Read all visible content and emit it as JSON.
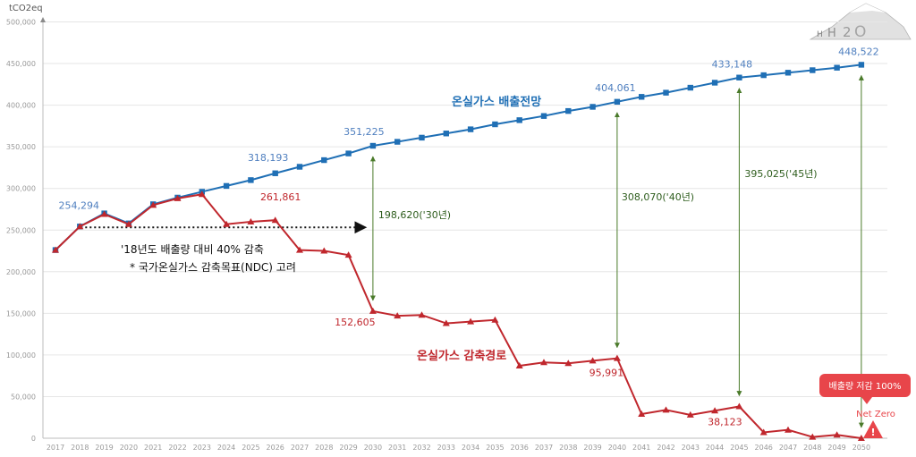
{
  "chart_data": {
    "type": "line",
    "ylabel": "tCO2eq",
    "ylim": [
      0,
      500000
    ],
    "yticks": [
      "0",
      "50,000",
      "100,000",
      "150,000",
      "200,000",
      "250,000",
      "300,000",
      "350,000",
      "400,000",
      "450,000",
      "500,000"
    ],
    "x": [
      "2017",
      "2018",
      "2019",
      "2020",
      "2021",
      "2022",
      "2023",
      "2024",
      "2025",
      "2026",
      "2027",
      "2028",
      "2029",
      "2030",
      "2031",
      "2032",
      "2033",
      "2034",
      "2035",
      "2036",
      "2037",
      "2038",
      "2039",
      "2040",
      "2041",
      "2042",
      "2043",
      "2044",
      "2045",
      "2046",
      "2047",
      "2048",
      "2049",
      "2050"
    ],
    "grid": true,
    "series": [
      {
        "name": "온실가스 배출전망",
        "color": "#1f6fb5",
        "marker": "square",
        "values": [
          226000,
          254294,
          270000,
          258000,
          281000,
          289000,
          296000,
          303000,
          310000,
          318193,
          326000,
          334000,
          342000,
          351225,
          356000,
          361000,
          366000,
          371000,
          377000,
          382000,
          387000,
          393000,
          398000,
          404061,
          410000,
          415000,
          421000,
          427000,
          433148,
          436000,
          439000,
          442000,
          445000,
          448522
        ]
      },
      {
        "name": "온실가스 감축경로",
        "color": "#c0272d",
        "marker": "triangle",
        "values": [
          226000,
          254294,
          269000,
          257000,
          280000,
          288000,
          293000,
          257000,
          260000,
          261861,
          226000,
          225000,
          220000,
          152605,
          147000,
          148000,
          138000,
          140000,
          142000,
          87000,
          91000,
          90000,
          93000,
          95991,
          29000,
          34000,
          28000,
          33000,
          38123,
          7000,
          10000,
          1500,
          4000,
          0
        ]
      }
    ],
    "blue_labels": [
      {
        "x": "2018",
        "text": "254,294"
      },
      {
        "x": "2026",
        "text": "318,193"
      },
      {
        "x": "2030",
        "text": "351,225"
      },
      {
        "x": "2040",
        "text": "404,061"
      },
      {
        "x": "2045",
        "text": "433,148"
      },
      {
        "x": "2050",
        "text": "448,522"
      }
    ],
    "red_labels": [
      {
        "x": "2026",
        "text": "261,861"
      },
      {
        "x": "2030",
        "text": "152,605"
      },
      {
        "x": "2040",
        "text": "95,991"
      },
      {
        "x": "2045",
        "text": "38,123"
      }
    ],
    "gaps": [
      {
        "x": "2030",
        "text": "198,620('30년)"
      },
      {
        "x": "2040",
        "text": "308,070('40년)"
      },
      {
        "x": "2045",
        "text": "395,025('45년)"
      },
      {
        "x": "2050",
        "text": ""
      }
    ],
    "annotations": {
      "line1_title": "온실가스 배출전망",
      "line2_title": "온실가스 감축경로",
      "target_text1": "'18년도 배출량 대비 40% 감축",
      "target_text2": "* 국가온실가스 감축목표(NDC) 고려",
      "badge_text": "배출량 저감  100%",
      "net_zero": "Net Zero"
    },
    "colors": {
      "blue": "#1f6fb5",
      "blue_label": "#4f7fbf",
      "red": "#c0272d",
      "green": "#4a7a2a",
      "badge": "#e8454a",
      "grid": "#e6e6e6"
    }
  }
}
